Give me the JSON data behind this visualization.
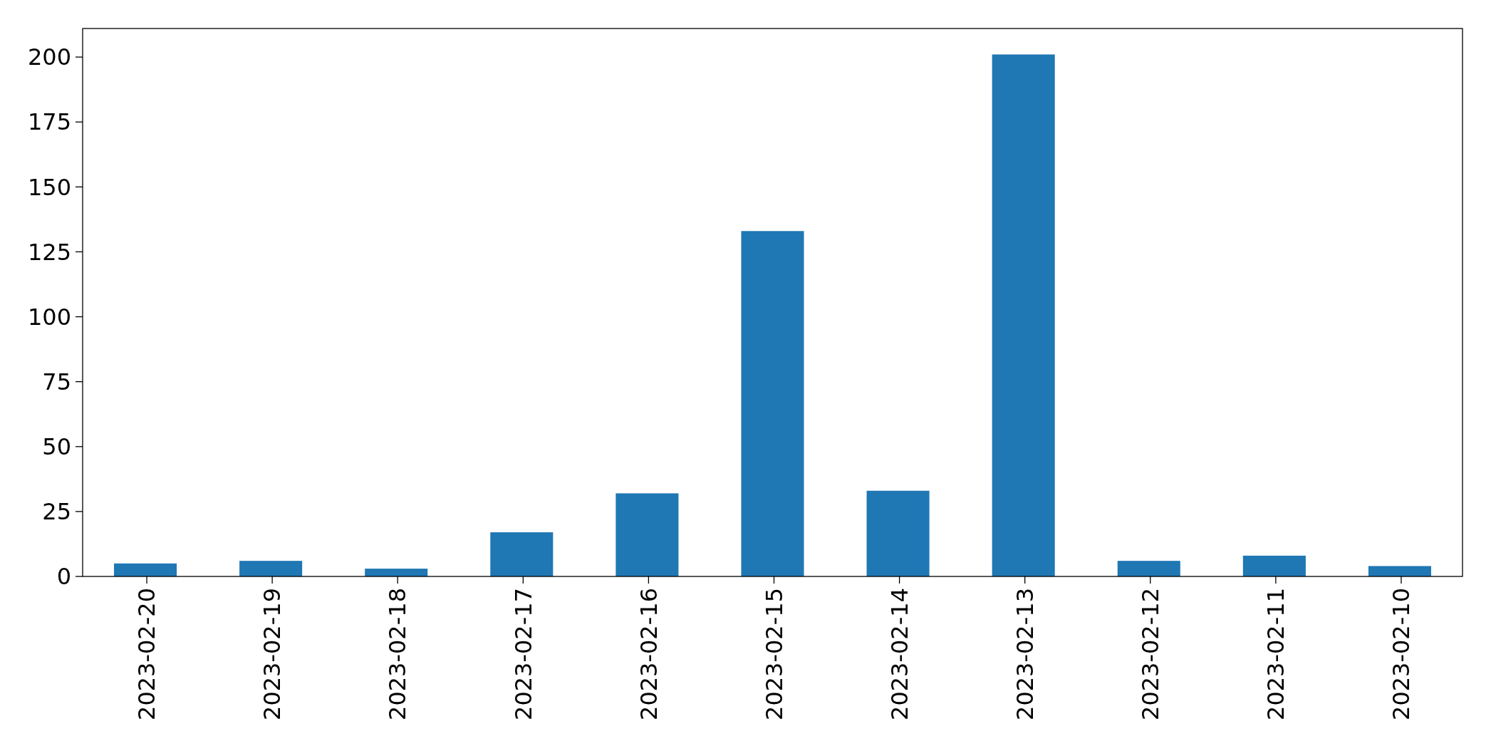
{
  "chart_data": {
    "type": "bar",
    "categories": [
      "2023-02-20",
      "2023-02-19",
      "2023-02-18",
      "2023-02-17",
      "2023-02-16",
      "2023-02-15",
      "2023-02-14",
      "2023-02-13",
      "2023-02-12",
      "2023-02-11",
      "2023-02-10"
    ],
    "values": [
      5,
      6,
      3,
      17,
      32,
      133,
      33,
      201,
      6,
      8,
      4
    ],
    "color": "#1f77b4",
    "ylim": [
      0,
      211
    ],
    "yticks": [
      0,
      25,
      50,
      75,
      100,
      125,
      150,
      175,
      200
    ],
    "grid": false
  }
}
